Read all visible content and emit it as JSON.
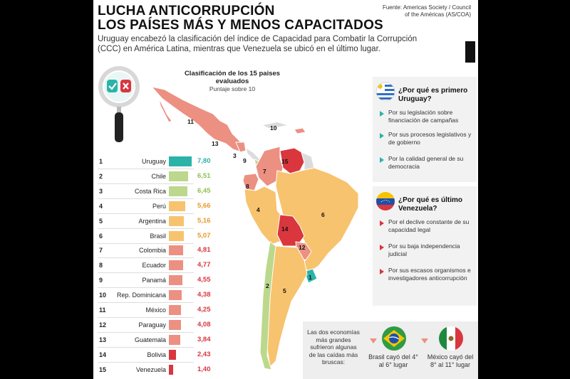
{
  "header": {
    "title_line1": "LUCHA ANTICORRUPCIÓN",
    "title_line2": "LOS PAÍSES MÁS Y MENOS CAPACITADOS",
    "intro": "Uruguay encabezó la clasificación del índice de Capacidad para Combatir la Corrupción (CCC) en América Latina, mientras que Venezuela se ubicó en el último lugar.",
    "source": "Fuente: Americas Society / Council of the Américas (AS/COA)"
  },
  "colors": {
    "top": "#2bb3a8",
    "high": "#bcd88c",
    "mid": "#f7c36e",
    "low": "#ec9082",
    "lowest": "#d9363e",
    "panel_bg": "#f2f2f2"
  },
  "chart_data": {
    "type": "bar",
    "title": "Clasificación de los 15 paises evaluados",
    "subtitle": "Puntaje sobre 10",
    "ylim": [
      0,
      10
    ],
    "categories": [
      "Uruguay",
      "Chile",
      "Costa Rica",
      "Perú",
      "Argentina",
      "Brasil",
      "Colombia",
      "Ecuador",
      "Panamá",
      "Rep. Dominicana",
      "México",
      "Paraguay",
      "Guatemala",
      "Bolivia",
      "Venezuela"
    ],
    "ranks": [
      "1",
      "2",
      "3",
      "4",
      "5",
      "6",
      "7",
      "8",
      "9",
      "10",
      "11",
      "12",
      "13",
      "14",
      "15"
    ],
    "values": [
      7.8,
      6.51,
      6.45,
      5.66,
      5.16,
      5.07,
      4.81,
      4.77,
      4.55,
      4.38,
      4.25,
      4.08,
      3.84,
      2.43,
      1.4
    ],
    "value_labels": [
      "7,80",
      "6,51",
      "6,45",
      "5,66",
      "5,16",
      "5,07",
      "4,81",
      "4,77",
      "4,55",
      "4,38",
      "4,25",
      "4,08",
      "3,84",
      "2,43",
      "1,40"
    ],
    "bar_colors": [
      "#2bb3a8",
      "#bcd88c",
      "#bcd88c",
      "#f7c36e",
      "#f7c36e",
      "#f7c36e",
      "#ec9082",
      "#ec9082",
      "#ec9082",
      "#ec9082",
      "#ec9082",
      "#ec9082",
      "#ec9082",
      "#d9363e",
      "#d9363e"
    ],
    "value_colors": [
      "#2bb3a8",
      "#8fbf4e",
      "#8fbf4e",
      "#e89a2c",
      "#e89a2c",
      "#e89a2c",
      "#d9363e",
      "#d9363e",
      "#d9363e",
      "#d9363e",
      "#d9363e",
      "#d9363e",
      "#d9363e",
      "#d9363e",
      "#d9363e"
    ]
  },
  "map_labels": [
    "1",
    "2",
    "3",
    "4",
    "5",
    "6",
    "7",
    "8",
    "9",
    "10",
    "11",
    "12",
    "13",
    "14",
    "15"
  ],
  "uruguay_panel": {
    "title": "¿Por qué es primero Uruguay?",
    "reasons": [
      "Por su legislación sobre financiación de campañas",
      "Por sus procesos legislativos y de gobierno",
      "Por la calidad general de su democracia"
    ]
  },
  "venezuela_panel": {
    "title": "¿Por qué es último Venezuela?",
    "reasons": [
      "Por el declive constante de su capacidad legal",
      "Por su baja independencia judicial",
      "Por sus escasos organismos e investigadores anticorrupción"
    ]
  },
  "bottom": {
    "text": "Las dos economías más grandes sufrieron algunas de las caídas más bruscas:",
    "brazil": "Brasil cayó del 4° al 6° lugar",
    "mexico": "México cayó del 8° al 11° lugar"
  }
}
